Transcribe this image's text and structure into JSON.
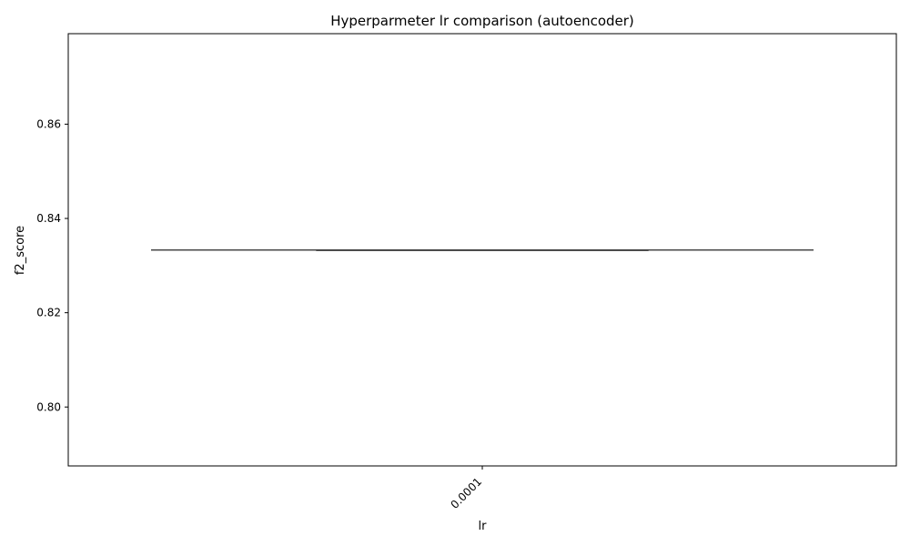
{
  "chart_data": {
    "type": "box",
    "title": "Hyperparmeter lr comparison (autoencoder)",
    "xlabel": "lr",
    "ylabel": "f2_score",
    "categories": [
      "0.0001"
    ],
    "series": [
      {
        "name": "f2_score",
        "boxes": [
          {
            "category": "0.0001",
            "min": 0.8333,
            "q1": 0.8333,
            "median": 0.8333,
            "q3": 0.8333,
            "max": 0.8333
          }
        ]
      }
    ],
    "yticks": [
      0.8,
      0.82,
      0.84,
      0.86
    ],
    "ytick_labels": [
      "0.80",
      "0.82",
      "0.84",
      "0.86"
    ],
    "ylim": [
      0.7875,
      0.8792
    ],
    "grid": false,
    "colors": {
      "line": "#404040",
      "axis": "#000000"
    }
  }
}
